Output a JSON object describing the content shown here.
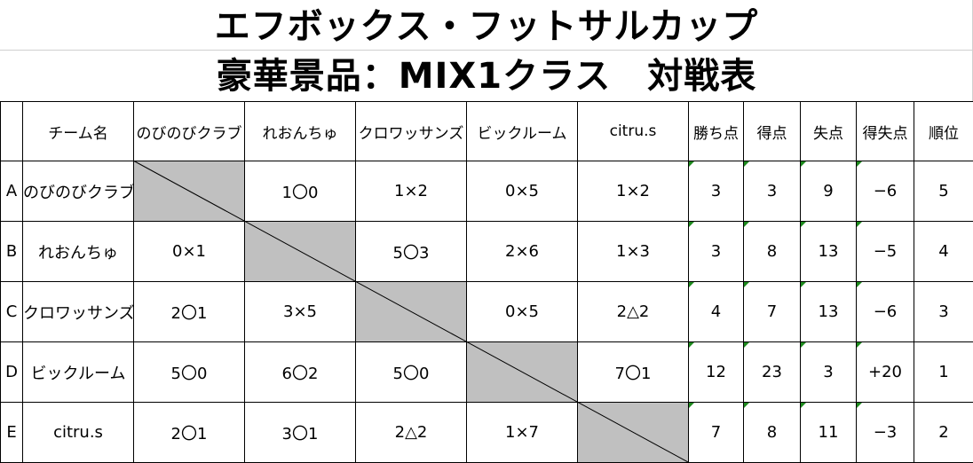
{
  "title": {
    "line1": "エフボックス・フットサルカップ",
    "line2": "豪華景品：MIX1クラス　対戦表"
  },
  "header": {
    "corner": "",
    "team_col": "チーム名",
    "opponents": [
      "のびのびクラブ",
      "れおんちゅ",
      "クロワッサンズ",
      "ビックルーム",
      "citru.s"
    ],
    "stats": [
      "勝ち点",
      "得点",
      "失点",
      "得失点",
      "順位"
    ]
  },
  "rows": [
    {
      "letter": "A",
      "team": "のびのびクラブ",
      "results": [
        "",
        "1〇0",
        "1×2",
        "0×5",
        "1×2"
      ],
      "stats": [
        "3",
        "3",
        "9",
        "−6",
        "5"
      ]
    },
    {
      "letter": "B",
      "team": "れおんちゅ",
      "results": [
        "0×1",
        "",
        "5〇3",
        "2×6",
        "1×3"
      ],
      "stats": [
        "3",
        "8",
        "13",
        "−5",
        "4"
      ]
    },
    {
      "letter": "C",
      "team": "クロワッサンズ",
      "results": [
        "2〇1",
        "3×5",
        "",
        "0×5",
        "2△2"
      ],
      "stats": [
        "4",
        "7",
        "13",
        "−6",
        "3"
      ]
    },
    {
      "letter": "D",
      "team": "ビックルーム",
      "results": [
        "5〇0",
        "6〇2",
        "5〇0",
        "",
        "7〇1"
      ],
      "stats": [
        "12",
        "23",
        "3",
        "+20",
        "1"
      ]
    },
    {
      "letter": "E",
      "team": "citru.s",
      "results": [
        "2〇1",
        "3〇1",
        "2△2",
        "1×7",
        ""
      ],
      "stats": [
        "7",
        "8",
        "11",
        "−3",
        "2"
      ]
    }
  ],
  "colors": {
    "self_match_fill": "#c0c0c0",
    "cell_marker": "#1d8a1d",
    "grid": "#000000"
  }
}
